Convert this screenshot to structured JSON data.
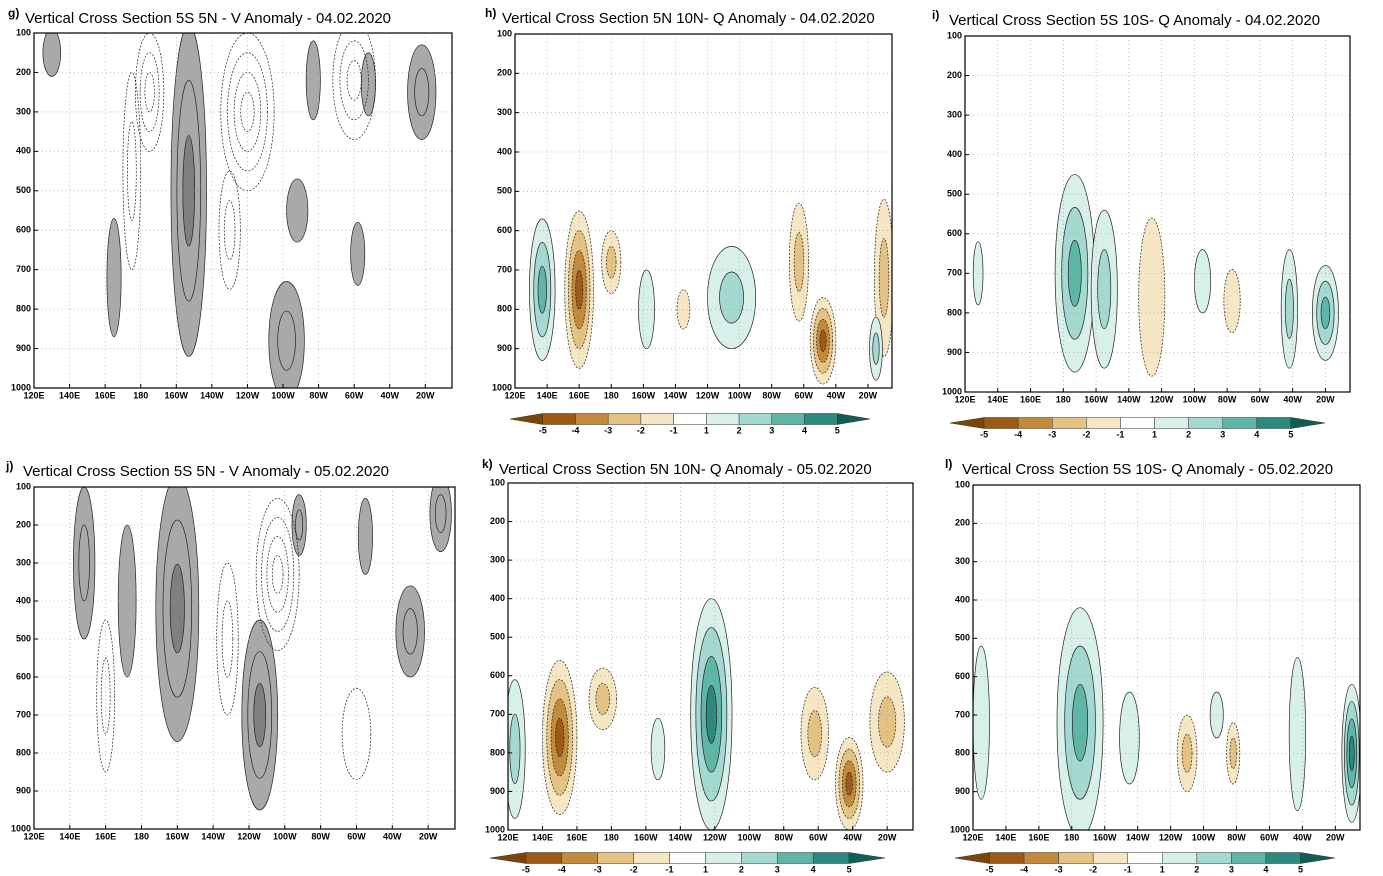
{
  "chart_data": [
    {
      "type": "contour",
      "panel_label": "g)",
      "title": "Vertical Cross Section 5S 5N - V Anomaly - 04.02.2020",
      "xlim": [
        120,
        355
      ],
      "xticks": [
        {
          "value": 120,
          "label": "120E"
        },
        {
          "value": 140,
          "label": "140E"
        },
        {
          "value": 160,
          "label": "160E"
        },
        {
          "value": 180,
          "label": "180"
        },
        {
          "value": 200,
          "label": "160W"
        },
        {
          "value": 220,
          "label": "140W"
        },
        {
          "value": 240,
          "label": "120W"
        },
        {
          "value": 260,
          "label": "100W"
        },
        {
          "value": 280,
          "label": "80W"
        },
        {
          "value": 300,
          "label": "60W"
        },
        {
          "value": 320,
          "label": "40W"
        },
        {
          "value": 340,
          "label": "20W"
        }
      ],
      "ylim": [
        1000,
        100
      ],
      "yticks": [
        100,
        200,
        300,
        400,
        500,
        600,
        700,
        800,
        900,
        1000
      ],
      "grid": true
    },
    {
      "type": "contour",
      "panel_label": "h)",
      "title": "Vertical Cross Section 5N 10N- Q Anomaly - 04.02.2020",
      "xlim": [
        120,
        355
      ],
      "xticks": [
        {
          "value": 120,
          "label": "120E"
        },
        {
          "value": 140,
          "label": "140E"
        },
        {
          "value": 160,
          "label": "160E"
        },
        {
          "value": 180,
          "label": "180"
        },
        {
          "value": 200,
          "label": "160W"
        },
        {
          "value": 220,
          "label": "140W"
        },
        {
          "value": 240,
          "label": "120W"
        },
        {
          "value": 260,
          "label": "100W"
        },
        {
          "value": 280,
          "label": "80W"
        },
        {
          "value": 300,
          "label": "60W"
        },
        {
          "value": 320,
          "label": "40W"
        },
        {
          "value": 340,
          "label": "20W"
        }
      ],
      "ylim": [
        1000,
        100
      ],
      "yticks": [
        100,
        200,
        300,
        400,
        500,
        600,
        700,
        800,
        900,
        1000
      ],
      "grid": true,
      "colorbar": {
        "levels": [
          -5,
          -4,
          -3,
          -2,
          -1,
          1,
          2,
          3,
          4,
          5
        ],
        "colors": [
          "#7a4508",
          "#9c5a15",
          "#c28a3a",
          "#e3c283",
          "#f5e6c4",
          "#ffffff",
          "#d9efea",
          "#a3d9cf",
          "#5fb5a6",
          "#2b8a7d",
          "#0f5f55"
        ]
      }
    },
    {
      "type": "contour",
      "panel_label": "i)",
      "title": "Vertical Cross Section 5S 10S- Q Anomaly - 04.02.2020",
      "xlim": [
        120,
        355
      ],
      "xticks": [
        {
          "value": 120,
          "label": "120E"
        },
        {
          "value": 140,
          "label": "140E"
        },
        {
          "value": 160,
          "label": "160E"
        },
        {
          "value": 180,
          "label": "180"
        },
        {
          "value": 200,
          "label": "160W"
        },
        {
          "value": 220,
          "label": "140W"
        },
        {
          "value": 240,
          "label": "120W"
        },
        {
          "value": 260,
          "label": "100W"
        },
        {
          "value": 280,
          "label": "80W"
        },
        {
          "value": 300,
          "label": "60W"
        },
        {
          "value": 320,
          "label": "40W"
        },
        {
          "value": 340,
          "label": "20W"
        }
      ],
      "ylim": [
        1000,
        100
      ],
      "yticks": [
        100,
        200,
        300,
        400,
        500,
        600,
        700,
        800,
        900,
        1000
      ],
      "grid": true,
      "colorbar": {
        "levels": [
          -5,
          -4,
          -3,
          -2,
          -1,
          1,
          2,
          3,
          4,
          5
        ],
        "colors": [
          "#7a4508",
          "#9c5a15",
          "#c28a3a",
          "#e3c283",
          "#f5e6c4",
          "#ffffff",
          "#d9efea",
          "#a3d9cf",
          "#5fb5a6",
          "#2b8a7d",
          "#0f5f55"
        ]
      }
    },
    {
      "type": "contour",
      "panel_label": "j)",
      "title": "Vertical Cross Section 5S 5N - V Anomaly - 05.02.2020",
      "xlim": [
        120,
        355
      ],
      "xticks": [
        {
          "value": 120,
          "label": "120E"
        },
        {
          "value": 140,
          "label": "140E"
        },
        {
          "value": 160,
          "label": "160E"
        },
        {
          "value": 180,
          "label": "180"
        },
        {
          "value": 200,
          "label": "160W"
        },
        {
          "value": 220,
          "label": "140W"
        },
        {
          "value": 240,
          "label": "120W"
        },
        {
          "value": 260,
          "label": "100W"
        },
        {
          "value": 280,
          "label": "80W"
        },
        {
          "value": 300,
          "label": "60W"
        },
        {
          "value": 320,
          "label": "40W"
        },
        {
          "value": 340,
          "label": "20W"
        }
      ],
      "ylim": [
        1000,
        100
      ],
      "yticks": [
        100,
        200,
        300,
        400,
        500,
        600,
        700,
        800,
        900,
        1000
      ],
      "grid": true
    },
    {
      "type": "contour",
      "panel_label": "k)",
      "title": "Vertical Cross Section 5N 10N- Q Anomaly - 05.02.2020",
      "xlim": [
        120,
        355
      ],
      "xticks": [
        {
          "value": 120,
          "label": "120E"
        },
        {
          "value": 140,
          "label": "140E"
        },
        {
          "value": 160,
          "label": "160E"
        },
        {
          "value": 180,
          "label": "180"
        },
        {
          "value": 200,
          "label": "160W"
        },
        {
          "value": 220,
          "label": "140W"
        },
        {
          "value": 240,
          "label": "120W"
        },
        {
          "value": 260,
          "label": "100W"
        },
        {
          "value": 280,
          "label": "80W"
        },
        {
          "value": 300,
          "label": "60W"
        },
        {
          "value": 320,
          "label": "40W"
        },
        {
          "value": 340,
          "label": "20W"
        }
      ],
      "ylim": [
        1000,
        100
      ],
      "yticks": [
        100,
        200,
        300,
        400,
        500,
        600,
        700,
        800,
        900,
        1000
      ],
      "grid": true,
      "colorbar": {
        "levels": [
          -5,
          -4,
          -3,
          -2,
          -1,
          1,
          2,
          3,
          4,
          5
        ],
        "colors": [
          "#7a4508",
          "#9c5a15",
          "#c28a3a",
          "#e3c283",
          "#f5e6c4",
          "#ffffff",
          "#d9efea",
          "#a3d9cf",
          "#5fb5a6",
          "#2b8a7d",
          "#0f5f55"
        ]
      }
    },
    {
      "type": "contour",
      "panel_label": "l)",
      "title": "Vertical Cross Section 5S 10S- Q Anomaly - 05.02.2020",
      "xlim": [
        120,
        355
      ],
      "xticks": [
        {
          "value": 120,
          "label": "120E"
        },
        {
          "value": 140,
          "label": "140E"
        },
        {
          "value": 160,
          "label": "160E"
        },
        {
          "value": 180,
          "label": "180"
        },
        {
          "value": 200,
          "label": "160W"
        },
        {
          "value": 220,
          "label": "140W"
        },
        {
          "value": 240,
          "label": "120W"
        },
        {
          "value": 260,
          "label": "100W"
        },
        {
          "value": 280,
          "label": "80W"
        },
        {
          "value": 300,
          "label": "60W"
        },
        {
          "value": 320,
          "label": "40W"
        },
        {
          "value": 340,
          "label": "20W"
        }
      ],
      "ylim": [
        1000,
        100
      ],
      "yticks": [
        100,
        200,
        300,
        400,
        500,
        600,
        700,
        800,
        900,
        1000
      ],
      "grid": true,
      "colorbar": {
        "levels": [
          -5,
          -4,
          -3,
          -2,
          -1,
          1,
          2,
          3,
          4,
          5
        ],
        "colors": [
          "#7a4508",
          "#9c5a15",
          "#c28a3a",
          "#e3c283",
          "#f5e6c4",
          "#ffffff",
          "#d9efea",
          "#a3d9cf",
          "#5fb5a6",
          "#2b8a7d",
          "#0f5f55"
        ]
      }
    }
  ]
}
